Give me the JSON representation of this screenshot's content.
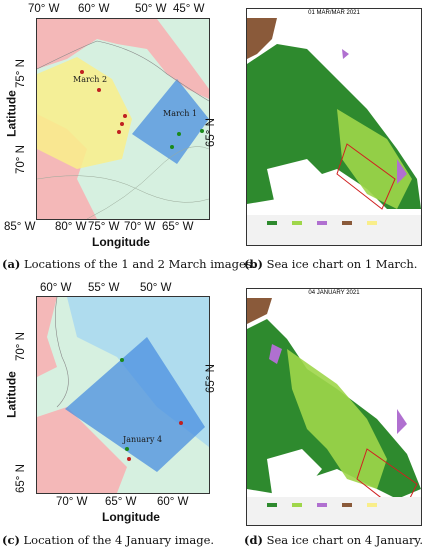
{
  "panel_a": {
    "x_ticks": [
      "85° W",
      "80° W",
      "75° W",
      "70° W",
      "65° W"
    ],
    "top_ticks": [
      "70° W",
      "60° W",
      "50° W",
      "45° W"
    ],
    "y_ticks": [
      "75° N",
      "70° N"
    ],
    "right_ticks": [
      "65° N"
    ],
    "x_label": "Longitude",
    "y_label": "Latitude",
    "region_labels": [
      "March 2",
      "March 1"
    ],
    "caption_letter": "(a)",
    "caption_text": "Locations of the 1 and 2 March images."
  },
  "panel_b": {
    "header": "01 MAR/MAR 2021",
    "caption_letter": "(b)",
    "caption_text": "Sea ice chart on 1 March."
  },
  "panel_c": {
    "x_ticks": [
      "70° W",
      "65° W",
      "60° W"
    ],
    "top_ticks": [
      "60° W",
      "55° W",
      "50° W"
    ],
    "y_ticks": [
      "70° N",
      "65° N"
    ],
    "right_ticks": [
      "65° N"
    ],
    "x_label": "Longitude",
    "y_label": "Latitude",
    "region_labels": [
      "January 4"
    ],
    "caption_letter": "(c)",
    "caption_text": "Location of the 4 January image."
  },
  "panel_d": {
    "header": "04 JANUARY 2021",
    "caption_letter": "(d)",
    "caption_text": "Sea ice chart on 4 January."
  },
  "colors": {
    "sea": "#d6f0e0",
    "land": "#f4b8b8",
    "yellow_zone": "#f9ee8a",
    "blue_zone": "#4a8fe0",
    "light_blue_zone": "#a8d8f0",
    "dark_green_ice": "#2e8a2e",
    "light_green_ice": "#9fd64a",
    "brown_land": "#8a5a3a",
    "purple_ice": "#b070d0",
    "red_marker": "#c02020",
    "green_marker": "#1a8a1a"
  }
}
